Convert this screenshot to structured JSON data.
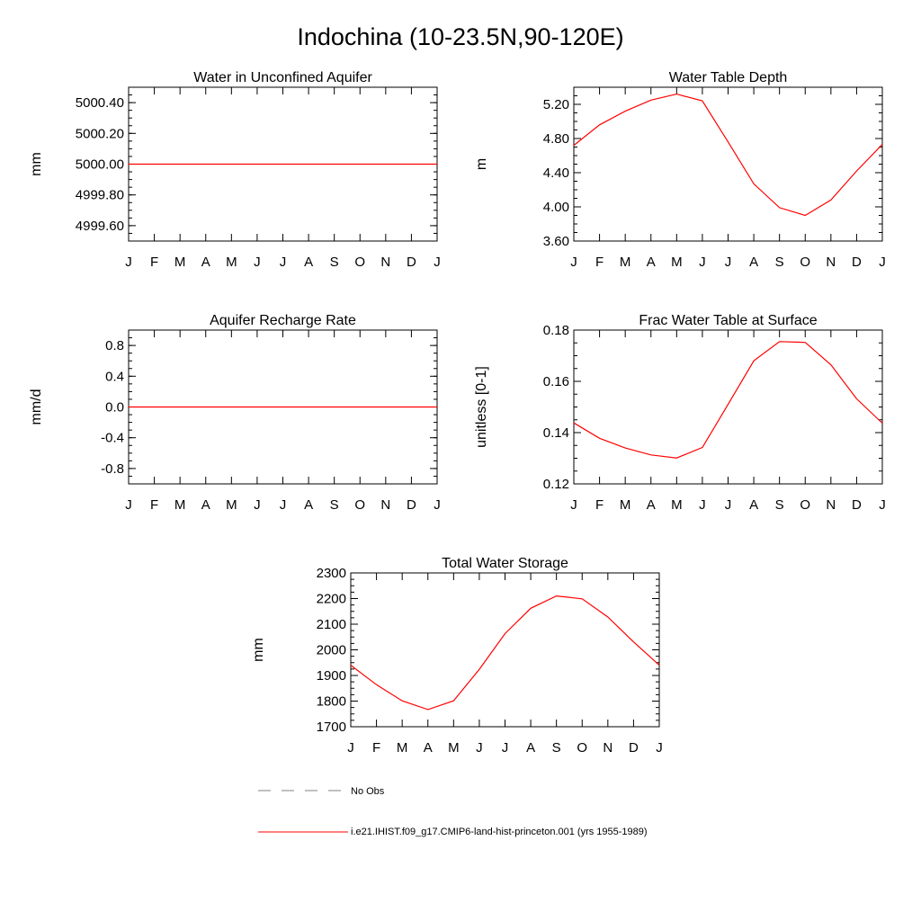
{
  "figure": {
    "title": "Indochina (10-23.5N,90-120E)"
  },
  "legend": {
    "obs_label": "No Obs",
    "model_label": "i.e21.IHIST.f09_g17.CMIP6-land-hist-princeton.001 (yrs 1955-1989)",
    "obs_color": "#808080",
    "model_color": "#ff0000"
  },
  "chart_data": [
    {
      "type": "line",
      "title": "Water in Unconfined Aquifer",
      "ylabel": "mm",
      "x": [
        "J",
        "F",
        "M",
        "A",
        "M",
        "J",
        "J",
        "A",
        "S",
        "O",
        "N",
        "D",
        "J"
      ],
      "ylim": [
        4999.5,
        5000.5
      ],
      "yticks": [
        4999.6,
        4999.8,
        5000.0,
        5000.2,
        5000.4
      ],
      "ytick_labels": [
        "4999.60",
        "4999.80",
        "5000.00",
        "5000.20",
        "5000.40"
      ],
      "series": [
        {
          "values": [
            5000,
            5000,
            5000,
            5000,
            5000,
            5000,
            5000,
            5000,
            5000,
            5000,
            5000,
            5000,
            5000
          ],
          "color": "#ff0000"
        }
      ]
    },
    {
      "type": "line",
      "title": "Water Table Depth",
      "ylabel": "m",
      "x": [
        "J",
        "F",
        "M",
        "A",
        "M",
        "J",
        "J",
        "A",
        "S",
        "O",
        "N",
        "D",
        "J"
      ],
      "ylim": [
        3.6,
        5.4
      ],
      "yticks": [
        3.6,
        4.0,
        4.4,
        4.8,
        5.2
      ],
      "ytick_labels": [
        "3.60",
        "4.00",
        "4.40",
        "4.80",
        "5.20"
      ],
      "series": [
        {
          "values": [
            4.72,
            4.96,
            5.12,
            5.25,
            5.32,
            5.24,
            4.76,
            4.27,
            3.99,
            3.9,
            4.08,
            4.42,
            4.73
          ],
          "color": "#ff0000"
        }
      ]
    },
    {
      "type": "line",
      "title": "Aquifer Recharge Rate",
      "ylabel": "mm/d",
      "x": [
        "J",
        "F",
        "M",
        "A",
        "M",
        "J",
        "J",
        "A",
        "S",
        "O",
        "N",
        "D",
        "J"
      ],
      "ylim": [
        -1.0,
        1.0
      ],
      "yticks": [
        -0.8,
        -0.4,
        0.0,
        0.4,
        0.8
      ],
      "ytick_labels": [
        "-0.8",
        "-0.4",
        "0.0",
        "0.4",
        "0.8"
      ],
      "series": [
        {
          "values": [
            0,
            0,
            0,
            0,
            0,
            0,
            0,
            0,
            0,
            0,
            0,
            0,
            0
          ],
          "color": "#ff0000"
        }
      ]
    },
    {
      "type": "line",
      "title": "Frac Water Table at Surface",
      "ylabel": "unitless [0-1]",
      "x": [
        "J",
        "F",
        "M",
        "A",
        "M",
        "J",
        "J",
        "A",
        "S",
        "O",
        "N",
        "D",
        "J"
      ],
      "ylim": [
        0.12,
        0.18
      ],
      "yticks": [
        0.12,
        0.14,
        0.16,
        0.18
      ],
      "ytick_labels": [
        "0.12",
        "0.14",
        "0.16",
        "0.18"
      ],
      "series": [
        {
          "values": [
            0.1438,
            0.1378,
            0.134,
            0.1313,
            0.1301,
            0.1342,
            0.151,
            0.168,
            0.1755,
            0.1752,
            0.1665,
            0.1532,
            0.1437
          ],
          "color": "#ff0000"
        }
      ]
    },
    {
      "type": "line",
      "title": "Total Water Storage",
      "ylabel": "mm",
      "x": [
        "J",
        "F",
        "M",
        "A",
        "M",
        "J",
        "J",
        "A",
        "S",
        "O",
        "N",
        "D",
        "J"
      ],
      "ylim": [
        1700,
        2300
      ],
      "yticks": [
        1700,
        1800,
        1900,
        2000,
        2100,
        2200,
        2300
      ],
      "ytick_labels": [
        "1700",
        "1800",
        "1900",
        "2000",
        "2100",
        "2200",
        "2300"
      ],
      "series": [
        {
          "values": [
            1940,
            1864,
            1801,
            1767,
            1801,
            1924,
            2063,
            2162,
            2210,
            2199,
            2128,
            2031,
            1940
          ],
          "color": "#ff0000"
        }
      ]
    }
  ]
}
